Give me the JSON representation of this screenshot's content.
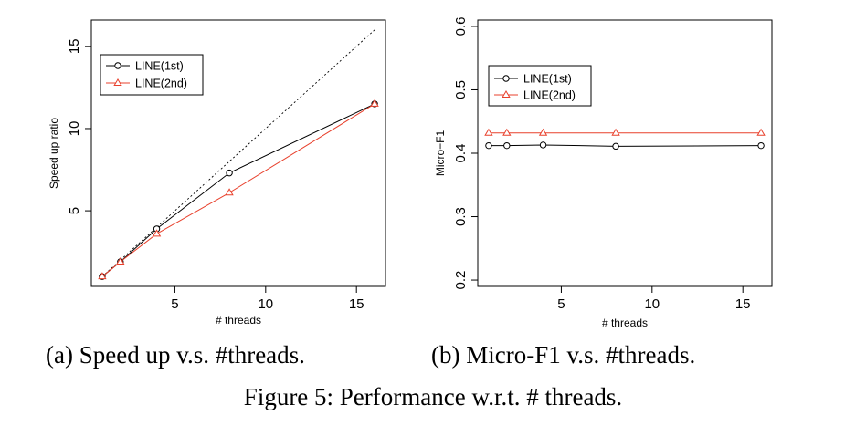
{
  "captions": {
    "a": "(a) Speed up v.s. #threads.",
    "b": "(b) Micro-F1 v.s. #threads.",
    "figure": "Figure 5: Performance w.r.t. # threads."
  },
  "chart_data": [
    {
      "type": "line",
      "xlabel": "# threads",
      "ylabel": "Speed up ratio",
      "xlim": [
        0.4,
        16.6
      ],
      "ylim": [
        0.4,
        16.6
      ],
      "xticks": [
        5,
        10,
        15
      ],
      "yticks": [
        5,
        10,
        15
      ],
      "grid": false,
      "legend_position": "top-left",
      "series": [
        {
          "name": "LINE(1st)",
          "marker": "circle",
          "color": "#000000",
          "x": [
            1,
            2,
            4,
            8,
            16
          ],
          "y": [
            1.0,
            1.9,
            3.9,
            7.3,
            11.5
          ]
        },
        {
          "name": "LINE(2nd)",
          "marker": "triangle",
          "color": "#e8402c",
          "x": [
            1,
            2,
            4,
            8,
            16
          ],
          "y": [
            1.0,
            1.9,
            3.6,
            6.1,
            11.5
          ]
        }
      ],
      "reference_line": {
        "style": "dotted",
        "x": [
          1,
          16
        ],
        "y": [
          1,
          16
        ]
      }
    },
    {
      "type": "line",
      "xlabel": "# threads",
      "ylabel": "Micro−F1",
      "xlim": [
        0.4,
        16.6
      ],
      "ylim": [
        0.19,
        0.61
      ],
      "xticks": [
        5,
        10,
        15
      ],
      "yticks": [
        0.2,
        0.3,
        0.4,
        0.5,
        0.6
      ],
      "ytick_labels": [
        "0.2",
        "0.3",
        "0.4",
        "0.5",
        "0.6"
      ],
      "grid": false,
      "legend_position": "top-left",
      "series": [
        {
          "name": "LINE(1st)",
          "marker": "circle",
          "color": "#000000",
          "x": [
            1,
            2,
            4,
            8,
            16
          ],
          "y": [
            0.412,
            0.412,
            0.413,
            0.411,
            0.412
          ]
        },
        {
          "name": "LINE(2nd)",
          "marker": "triangle",
          "color": "#e8402c",
          "x": [
            1,
            2,
            4,
            8,
            16
          ],
          "y": [
            0.432,
            0.432,
            0.432,
            0.432,
            0.432
          ]
        }
      ]
    }
  ]
}
